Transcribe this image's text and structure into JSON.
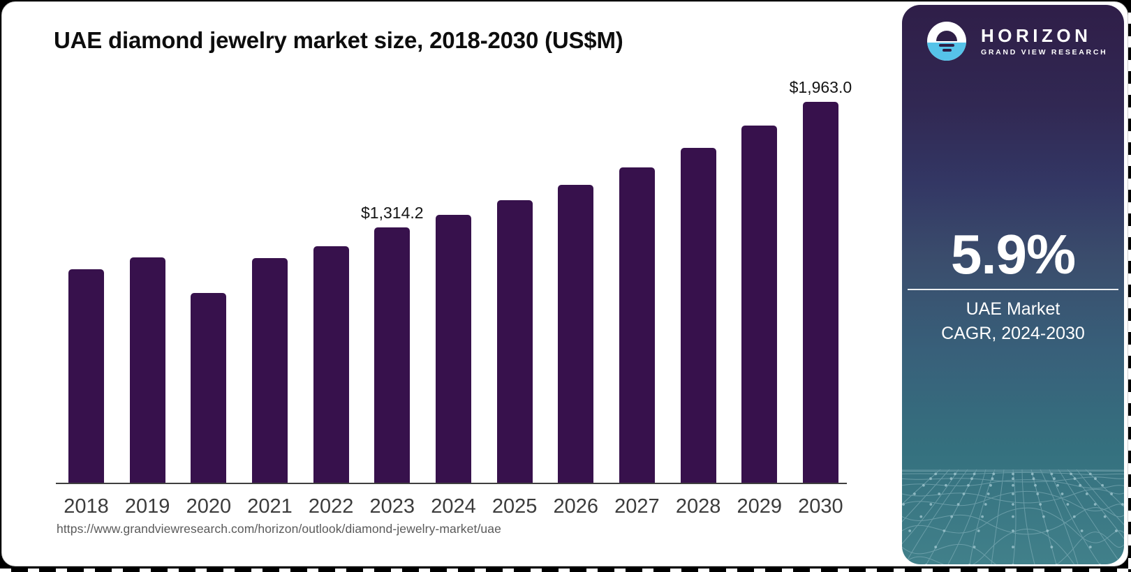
{
  "page": {
    "source_url": "https://www.grandviewresearch.com/horizon/outlook/diamond-jewelry-market/uae"
  },
  "chart_data": {
    "type": "bar",
    "title": "UAE diamond jewelry market size, 2018-2030 (US$M)",
    "unit": "US$M",
    "categories": [
      "2018",
      "2019",
      "2020",
      "2021",
      "2022",
      "2023",
      "2024",
      "2025",
      "2026",
      "2027",
      "2028",
      "2029",
      "2030"
    ],
    "values": [
      1100,
      1161,
      977,
      1157,
      1218,
      1314.2,
      1380,
      1455,
      1534,
      1624,
      1725,
      1840,
      1963.0
    ],
    "value_labels": [
      {
        "category": "2023",
        "text": "$1,314.2"
      },
      {
        "category": "2030",
        "text": "$1,963.0"
      }
    ],
    "ylim": [
      0,
      2000
    ],
    "grid": false,
    "legend": "none",
    "bar_color": "#37114C",
    "axis_color": "#3F3F3F",
    "xlabel": "",
    "ylabel": ""
  },
  "sidebar": {
    "logo": {
      "name": "HORIZON",
      "subtitle": "GRAND VIEW RESEARCH",
      "icon": "horizon-sunrise-logo-icon",
      "icon_blue": "#56C3E9"
    },
    "stat_value": "5.9%",
    "stat_label_line1": "UAE Market",
    "stat_label_line2": "CAGR, 2024-2030"
  }
}
